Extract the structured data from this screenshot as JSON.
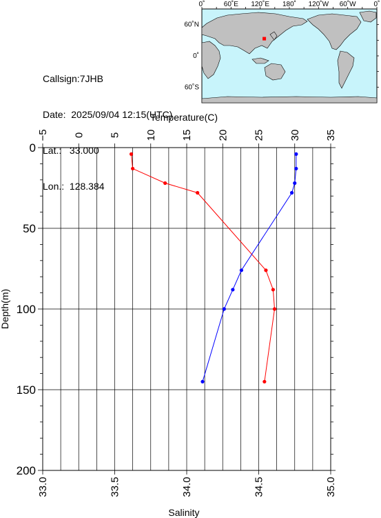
{
  "station": {
    "callsign_label": "Callsign:",
    "callsign": "7JHB",
    "date_label": "Date:",
    "date": "2025/09/04 12:15(UTC)",
    "lat_label": "Lat.:",
    "lat": "33.000",
    "lon_label": "Lon.:",
    "lon": "128.384"
  },
  "map": {
    "top_labels": [
      "0˚",
      "60˚E",
      "120˚E",
      "180˚",
      "120˚W",
      "60˚W",
      "0˚"
    ],
    "side_labels": [
      "60˚N",
      "0˚",
      "60˚S"
    ],
    "ocean_color": "#c8f4fb",
    "land_color": "#c0c0c0",
    "marker_color": "#ff0000",
    "marker": {
      "lon": 128.384,
      "lat": 33.0
    }
  },
  "chart_data": {
    "type": "line",
    "top_axis": {
      "label": "Temperature(C)",
      "range": [
        -5,
        35
      ],
      "ticks": [
        "−5",
        "0",
        "5",
        "10",
        "15",
        "20",
        "25",
        "30",
        "35"
      ]
    },
    "bottom_axis": {
      "label": "Salinity",
      "range": [
        33.0,
        35.0
      ],
      "ticks": [
        "33.0",
        "33.5",
        "34.0",
        "34.5",
        "35.0"
      ]
    },
    "y_axis": {
      "label": "Depth(m)",
      "range": [
        0,
        200
      ],
      "inverted": true,
      "ticks": [
        "0",
        "50",
        "100",
        "150",
        "200"
      ]
    },
    "grid": true,
    "series": [
      {
        "color": "#ff0000",
        "axis": "top",
        "points": [
          [
            7.3,
            4
          ],
          [
            7.5,
            13
          ],
          [
            12.0,
            22
          ],
          [
            16.5,
            28
          ],
          [
            26.0,
            76
          ],
          [
            27.0,
            88
          ],
          [
            27.2,
            100
          ],
          [
            25.8,
            145
          ]
        ]
      },
      {
        "color": "#0000ff",
        "axis": "bottom",
        "points": [
          [
            34.76,
            4
          ],
          [
            34.76,
            13
          ],
          [
            34.75,
            22
          ],
          [
            34.73,
            28
          ],
          [
            34.38,
            76
          ],
          [
            34.32,
            88
          ],
          [
            34.26,
            100
          ],
          [
            34.11,
            145
          ]
        ]
      }
    ]
  }
}
